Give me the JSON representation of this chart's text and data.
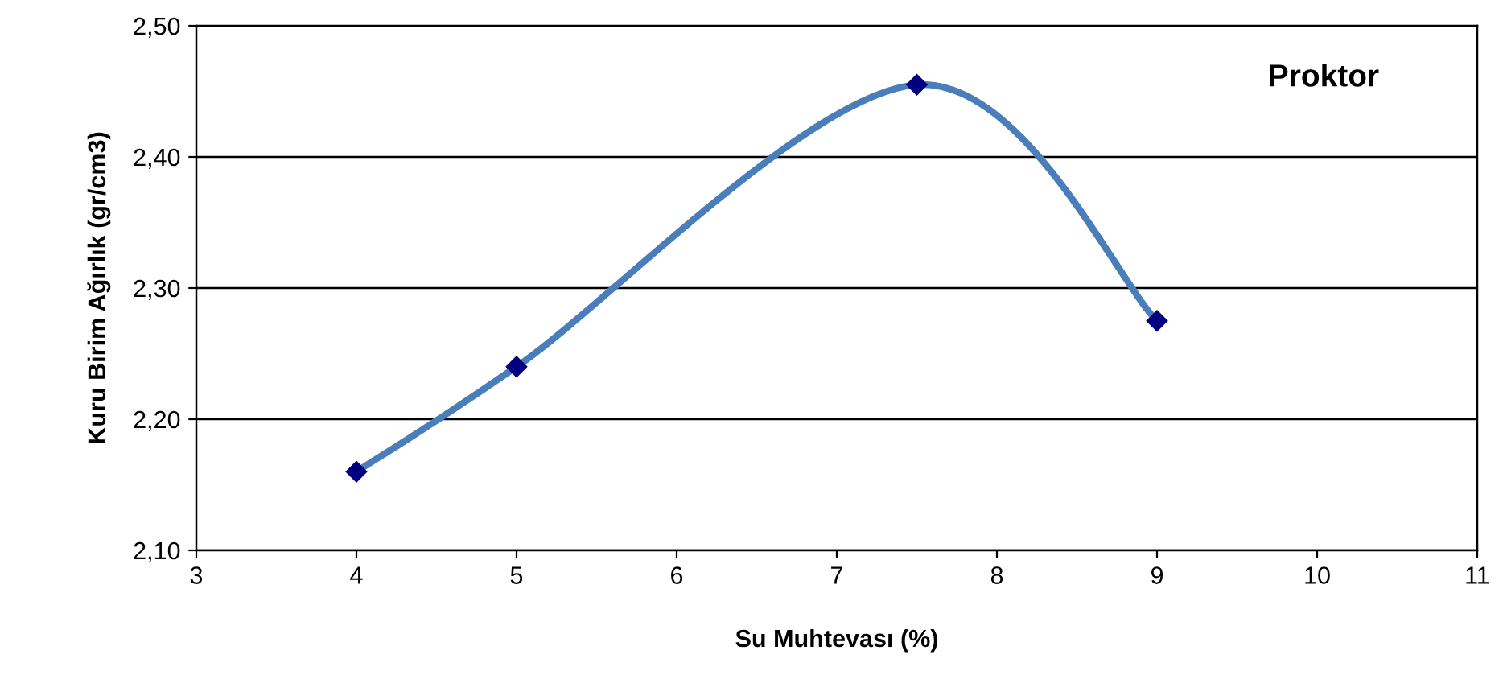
{
  "chart_data": {
    "type": "line",
    "xlabel": "Su Muhtevası (%)",
    "ylabel": "Kuru Birim Ağırlık (gr/cm3)",
    "x": [
      4,
      5,
      7.5,
      9
    ],
    "series": [
      {
        "color": "#4a7ebb",
        "values": [
          2.16,
          2.24,
          2.455,
          2.275
        ]
      }
    ],
    "marker": "diamond",
    "xlim": [
      3,
      11
    ],
    "xticks": [
      3,
      4,
      5,
      6,
      7,
      8,
      9,
      10,
      11
    ],
    "ylim": [
      2.1,
      2.5
    ],
    "yticks": [
      {
        "value": 2.1,
        "label": "2,10"
      },
      {
        "value": 2.2,
        "label": "2,20"
      },
      {
        "value": 2.3,
        "label": "2,30"
      },
      {
        "value": 2.4,
        "label": "2,40"
      },
      {
        "value": 2.5,
        "label": "2,50"
      }
    ],
    "grid": "y",
    "annotations": [
      "Proktor"
    ]
  }
}
